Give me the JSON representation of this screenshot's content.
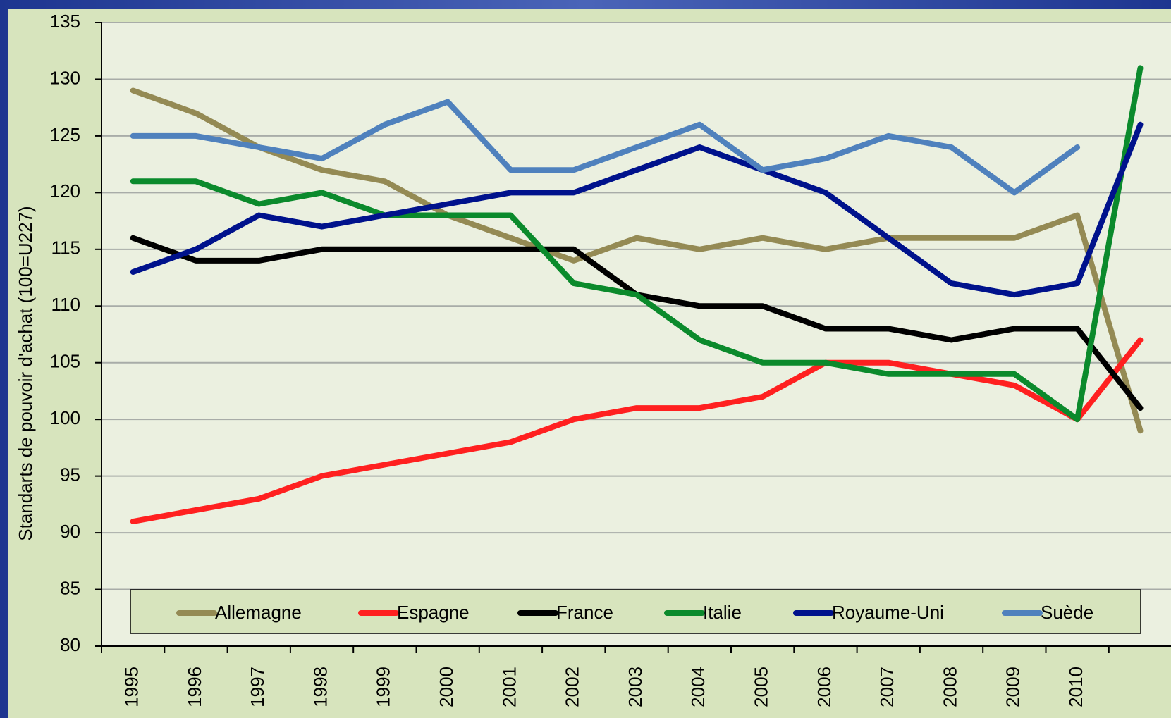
{
  "chart_data": {
    "type": "line",
    "y_label": "Standarts de pouvoir d'achat (100=U227)",
    "categories": [
      "1995",
      "1996",
      "1997",
      "1998",
      "1999",
      "2000",
      "2001",
      "2002",
      "2003",
      "2004",
      "2005",
      "2006",
      "2007",
      "2008",
      "2009",
      "2010",
      null
    ],
    "series": [
      {
        "name": "Allemagne",
        "color": "#948a54",
        "values": [
          129,
          127,
          124,
          122,
          121,
          118,
          116,
          114,
          116,
          115,
          116,
          115,
          116,
          116,
          116,
          118,
          99
        ]
      },
      {
        "name": "Espagne",
        "color": "#ff2020",
        "values": [
          91,
          92,
          93,
          95,
          96,
          97,
          98,
          100,
          101,
          101,
          102,
          105,
          105,
          104,
          103,
          100,
          107
        ]
      },
      {
        "name": "France",
        "color": "#000000",
        "values": [
          116,
          114,
          114,
          115,
          115,
          115,
          115,
          115,
          111,
          110,
          110,
          108,
          108,
          107,
          108,
          108,
          101
        ]
      },
      {
        "name": "Italie",
        "color": "#0b8a2c",
        "values": [
          121,
          121,
          119,
          120,
          118,
          118,
          118,
          112,
          111,
          107,
          105,
          105,
          104,
          104,
          104,
          100,
          131
        ]
      },
      {
        "name": "Royaume-Uni",
        "color": "#00128c",
        "values": [
          113,
          115,
          118,
          117,
          118,
          119,
          120,
          120,
          122,
          124,
          122,
          120,
          116,
          112,
          111,
          112,
          126
        ]
      },
      {
        "name": "Suède",
        "color": "#4f81bd",
        "values": [
          125,
          125,
          124,
          123,
          126,
          128,
          122,
          122,
          124,
          126,
          122,
          123,
          125,
          124,
          120,
          124,
          null
        ]
      }
    ],
    "ylim": [
      80,
      135
    ],
    "yticks": [
      80,
      85,
      90,
      95,
      100,
      105,
      110,
      115,
      120,
      125,
      130,
      135
    ],
    "grid": true,
    "legend": "bottom"
  }
}
